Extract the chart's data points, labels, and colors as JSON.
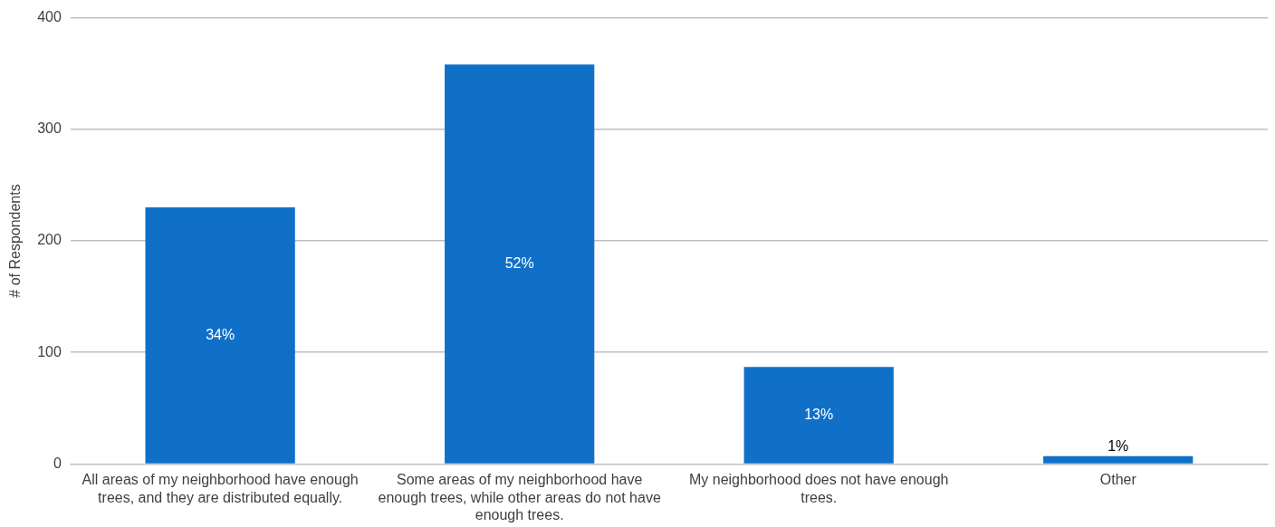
{
  "chart_data": {
    "type": "bar",
    "ylabel": "# of Respondents",
    "categories": [
      "All areas of my neighborhood have enough trees, and they are distributed equally.",
      "Some areas of my neighborhood have enough trees, while other areas do not have enough trees.",
      "My neighborhood does not have enough trees.",
      "Other"
    ],
    "values": [
      230,
      358,
      87,
      7
    ],
    "annotations": [
      "34%",
      "52%",
      "13%",
      "1%"
    ],
    "color": "#1070c8",
    "ylim": [
      0,
      400
    ],
    "yticks": [
      0,
      100,
      200,
      300,
      400
    ],
    "grid": "y",
    "legend": false
  }
}
